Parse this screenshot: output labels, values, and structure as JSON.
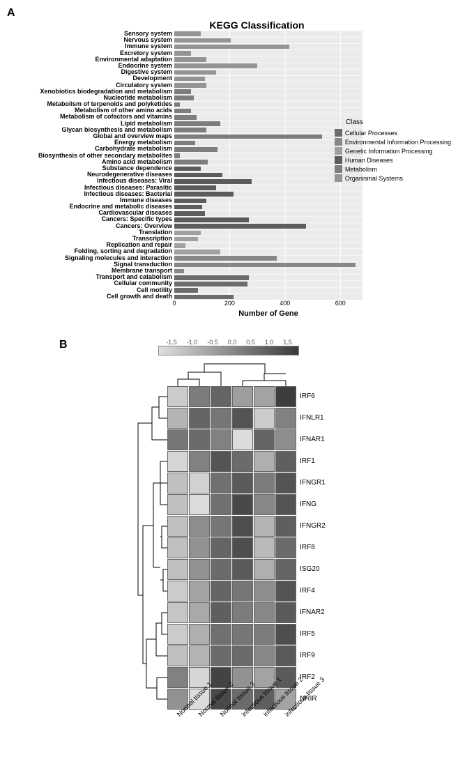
{
  "panelA": {
    "label": "A",
    "title": "KEGG Classification",
    "xlabel": "Number of Gene",
    "xmax": 680,
    "xticks": [
      0,
      200,
      400,
      600
    ],
    "background": "#ebebeb",
    "grid_white": "#ffffff",
    "grid_gray": "#d9d9d9",
    "legend_title": "Class",
    "classes": [
      {
        "name": "Cellular Processes",
        "color": "#6b6b6b"
      },
      {
        "name": "Environmental Information Processing",
        "color": "#878787"
      },
      {
        "name": "Genetic Information Processing",
        "color": "#a0a0a0"
      },
      {
        "name": "Human Diseases",
        "color": "#5c5c5c"
      },
      {
        "name": "Metabolism",
        "color": "#7d7d7d"
      },
      {
        "name": "Organismal Systems",
        "color": "#949494"
      }
    ],
    "categories": [
      {
        "label": "Sensory system",
        "value": 95,
        "class": 5
      },
      {
        "label": "Nervous system",
        "value": 205,
        "class": 5
      },
      {
        "label": "Immune system",
        "value": 415,
        "class": 5
      },
      {
        "label": "Excretory system",
        "value": 60,
        "class": 5
      },
      {
        "label": "Environmental adaptation",
        "value": 115,
        "class": 5
      },
      {
        "label": "Endocrine system",
        "value": 300,
        "class": 5
      },
      {
        "label": "Digestive system",
        "value": 150,
        "class": 5
      },
      {
        "label": "Development",
        "value": 110,
        "class": 5
      },
      {
        "label": "Circulatory system",
        "value": 115,
        "class": 5
      },
      {
        "label": "Xenobiotics biodegradation and metabolism",
        "value": 60,
        "class": 4
      },
      {
        "label": "Nucleotide metabolism",
        "value": 70,
        "class": 4
      },
      {
        "label": "Metabolism of terpenoids and polyketides",
        "value": 20,
        "class": 4
      },
      {
        "label": "Metabolism of other amino acids",
        "value": 60,
        "class": 4
      },
      {
        "label": "Metabolism of cofactors and vitamins",
        "value": 80,
        "class": 4
      },
      {
        "label": "Lipid metabolism",
        "value": 165,
        "class": 4
      },
      {
        "label": "Glycan biosynthesis and metabolism",
        "value": 115,
        "class": 4
      },
      {
        "label": "Global and overview maps",
        "value": 535,
        "class": 4
      },
      {
        "label": "Energy metabolism",
        "value": 75,
        "class": 4
      },
      {
        "label": "Carbohydrate metabolism",
        "value": 155,
        "class": 4
      },
      {
        "label": "Biosynthesis of other secondary metabolites",
        "value": 20,
        "class": 4
      },
      {
        "label": "Amino acid metabolism",
        "value": 120,
        "class": 4
      },
      {
        "label": "Substance dependence",
        "value": 95,
        "class": 3
      },
      {
        "label": "Neurodegenerative diseases",
        "value": 175,
        "class": 3
      },
      {
        "label": "Infectious diseases: Viral",
        "value": 280,
        "class": 3
      },
      {
        "label": "Infectious diseases: Parasitic",
        "value": 150,
        "class": 3
      },
      {
        "label": "Infectious diseases: Bacterial",
        "value": 215,
        "class": 3
      },
      {
        "label": "Immune diseases",
        "value": 115,
        "class": 3
      },
      {
        "label": "Endocrine and metabolic diseases",
        "value": 100,
        "class": 3
      },
      {
        "label": "Cardiovascular diseases",
        "value": 110,
        "class": 3
      },
      {
        "label": "Cancers: Specific types",
        "value": 270,
        "class": 3
      },
      {
        "label": "Cancers: Overview",
        "value": 475,
        "class": 3
      },
      {
        "label": "Translation",
        "value": 95,
        "class": 2
      },
      {
        "label": "Transcription",
        "value": 85,
        "class": 2
      },
      {
        "label": "Replication and repair",
        "value": 40,
        "class": 2
      },
      {
        "label": "Folding, sorting and degradation",
        "value": 165,
        "class": 2
      },
      {
        "label": "Signaling molecules and interaction",
        "value": 370,
        "class": 1
      },
      {
        "label": "Signal transduction",
        "value": 655,
        "class": 1
      },
      {
        "label": "Membrane transport",
        "value": 35,
        "class": 1
      },
      {
        "label": "Transport and catabolism",
        "value": 270,
        "class": 0
      },
      {
        "label": "Cellular community",
        "value": 265,
        "class": 0
      },
      {
        "label": "Cell motility",
        "value": 85,
        "class": 0
      },
      {
        "label": "Cell growth and death",
        "value": 215,
        "class": 0
      }
    ]
  },
  "panelB": {
    "label": "B",
    "colorbar_ticks": [
      "-1.5",
      "-1.0",
      "-0.5",
      "0.0",
      "0.5",
      "1.0",
      "1.5"
    ],
    "colorbar_gradient": [
      "#dedede",
      "#c4c4c4",
      "#a8a8a8",
      "#8c8c8c",
      "#707070",
      "#555555",
      "#3a3a3a"
    ],
    "row_labels": [
      "IRF6",
      "IFNLR1",
      "IFNAR1",
      "IRF1",
      "IFNGR1",
      "IFNG",
      "IFNGR2",
      "IRF8",
      "ISG20",
      "IRF4",
      "IFNAR2",
      "IRF5",
      "IRF9",
      "IRF2",
      "NRIR"
    ],
    "col_labels": [
      "Normal tissue 1",
      "Normal tissue 2",
      "Normal tissue 3",
      "infectious tissue 1",
      "infectious tissue 2",
      "infectious tissue 3"
    ],
    "values": [
      [
        -1.2,
        0.2,
        0.6,
        -0.4,
        -0.5,
        1.3
      ],
      [
        -0.8,
        0.6,
        0.3,
        0.9,
        -1.2,
        0.1
      ],
      [
        0.3,
        0.5,
        0.1,
        -1.5,
        0.6,
        -0.1
      ],
      [
        -1.4,
        0.1,
        0.9,
        0.5,
        -0.7,
        0.7
      ],
      [
        -1.0,
        -1.3,
        0.4,
        0.8,
        0.2,
        0.9
      ],
      [
        -1.0,
        -1.5,
        0.4,
        1.1,
        0.0,
        0.9
      ],
      [
        -1.0,
        -0.1,
        0.3,
        1.0,
        -0.8,
        0.7
      ],
      [
        -1.0,
        -0.2,
        0.6,
        1.0,
        -0.9,
        0.5
      ],
      [
        -1.0,
        -0.2,
        0.5,
        0.8,
        -0.7,
        0.6
      ],
      [
        -1.2,
        -0.5,
        0.6,
        0.3,
        -0.1,
        0.9
      ],
      [
        -1.1,
        -0.6,
        0.7,
        0.2,
        0.0,
        0.8
      ],
      [
        -1.2,
        -0.7,
        0.4,
        0.3,
        0.2,
        1.0
      ],
      [
        -1.0,
        -0.8,
        0.5,
        0.5,
        0.0,
        0.8
      ],
      [
        0.1,
        -1.4,
        1.2,
        -0.2,
        -0.5,
        0.8
      ],
      [
        -0.2,
        -1.5,
        1.1,
        0.5,
        0.7,
        -0.5
      ]
    ]
  }
}
